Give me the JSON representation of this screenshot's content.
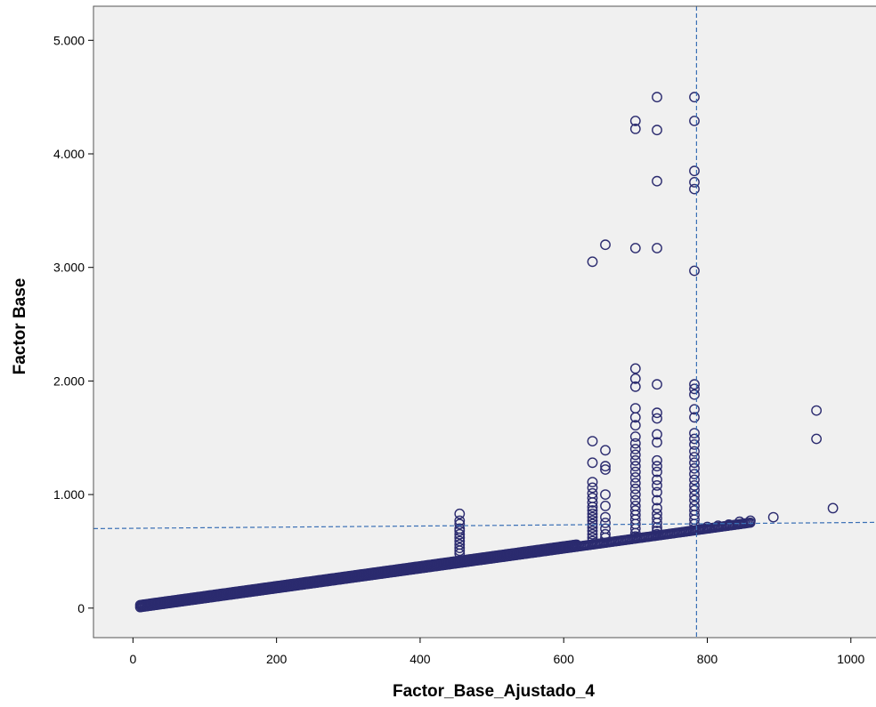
{
  "colors": {
    "plot_background": "#f0f0f0",
    "marker": "#2b2b6f",
    "reference_line": "#3a6fb5",
    "frame": "#555555"
  },
  "chart_data": {
    "type": "scatter",
    "title": "",
    "xlabel": "Factor_Base_Ajustado_4",
    "ylabel": "Factor Base",
    "xlim": [
      -55,
      1035
    ],
    "ylim": [
      -260,
      5300
    ],
    "x_ticks": [
      {
        "value": 0,
        "label": "0"
      },
      {
        "value": 200,
        "label": "200"
      },
      {
        "value": 400,
        "label": "400"
      },
      {
        "value": 600,
        "label": "600"
      },
      {
        "value": 800,
        "label": "800"
      },
      {
        "value": 1000,
        "label": "1000"
      }
    ],
    "y_ticks": [
      {
        "value": 0,
        "label": "0"
      },
      {
        "value": 1000,
        "label": "1.000"
      },
      {
        "value": 2000,
        "label": "2.000"
      },
      {
        "value": 3000,
        "label": "3.000"
      },
      {
        "value": 4000,
        "label": "4.000"
      },
      {
        "value": 5000,
        "label": "5.000"
      }
    ],
    "grid": false,
    "marker": "open-circle",
    "reference_lines": {
      "vertical_x": 785,
      "horizontal_from": {
        "x": -55,
        "y": 700
      },
      "horizontal_to": {
        "x": 1035,
        "y": 755
      }
    },
    "trend_band": {
      "x_start": 10,
      "x_end": 860,
      "y_at_start": 8,
      "y_per_x": 0.876,
      "note": "dense band of overlapping points along y ≈ 0.88·x"
    },
    "points": [
      [
        455,
        830
      ],
      [
        455,
        770
      ],
      [
        455,
        740
      ],
      [
        455,
        700
      ],
      [
        455,
        680
      ],
      [
        455,
        650
      ],
      [
        455,
        620
      ],
      [
        455,
        590
      ],
      [
        455,
        560
      ],
      [
        455,
        530
      ],
      [
        455,
        505
      ],
      [
        455,
        480
      ],
      [
        640,
        1470
      ],
      [
        640,
        1280
      ],
      [
        640,
        1110
      ],
      [
        640,
        1060
      ],
      [
        640,
        1010
      ],
      [
        640,
        970
      ],
      [
        640,
        930
      ],
      [
        640,
        890
      ],
      [
        640,
        860
      ],
      [
        640,
        830
      ],
      [
        640,
        800
      ],
      [
        640,
        770
      ],
      [
        640,
        740
      ],
      [
        640,
        710
      ],
      [
        640,
        680
      ],
      [
        640,
        650
      ],
      [
        640,
        620
      ],
      [
        640,
        590
      ],
      [
        658,
        1390
      ],
      [
        658,
        1250
      ],
      [
        658,
        1220
      ],
      [
        658,
        1000
      ],
      [
        658,
        900
      ],
      [
        658,
        800
      ],
      [
        658,
        750
      ],
      [
        658,
        700
      ],
      [
        658,
        650
      ],
      [
        658,
        620
      ],
      [
        640,
        3050
      ],
      [
        658,
        3200
      ],
      [
        700,
        4290
      ],
      [
        700,
        4220
      ],
      [
        700,
        3170
      ],
      [
        700,
        2110
      ],
      [
        700,
        2020
      ],
      [
        700,
        1950
      ],
      [
        700,
        1760
      ],
      [
        700,
        1680
      ],
      [
        700,
        1610
      ],
      [
        700,
        1510
      ],
      [
        700,
        1450
      ],
      [
        700,
        1400
      ],
      [
        700,
        1350
      ],
      [
        700,
        1300
      ],
      [
        700,
        1250
      ],
      [
        700,
        1200
      ],
      [
        700,
        1150
      ],
      [
        700,
        1100
      ],
      [
        700,
        1050
      ],
      [
        700,
        1000
      ],
      [
        700,
        950
      ],
      [
        700,
        900
      ],
      [
        700,
        860
      ],
      [
        700,
        820
      ],
      [
        700,
        780
      ],
      [
        700,
        740
      ],
      [
        700,
        700
      ],
      [
        700,
        660
      ],
      [
        700,
        630
      ],
      [
        730,
        4500
      ],
      [
        730,
        4210
      ],
      [
        730,
        3760
      ],
      [
        730,
        3170
      ],
      [
        730,
        1970
      ],
      [
        730,
        1720
      ],
      [
        730,
        1670
      ],
      [
        730,
        1530
      ],
      [
        730,
        1460
      ],
      [
        730,
        1300
      ],
      [
        730,
        1250
      ],
      [
        730,
        1200
      ],
      [
        730,
        1130
      ],
      [
        730,
        1080
      ],
      [
        730,
        1020
      ],
      [
        730,
        950
      ],
      [
        730,
        880
      ],
      [
        730,
        830
      ],
      [
        730,
        790
      ],
      [
        730,
        750
      ],
      [
        730,
        710
      ],
      [
        730,
        680
      ],
      [
        730,
        650
      ],
      [
        782,
        4500
      ],
      [
        782,
        4290
      ],
      [
        782,
        3850
      ],
      [
        782,
        3750
      ],
      [
        782,
        3690
      ],
      [
        782,
        2970
      ],
      [
        782,
        1970
      ],
      [
        782,
        1930
      ],
      [
        782,
        1880
      ],
      [
        782,
        1750
      ],
      [
        782,
        1680
      ],
      [
        782,
        1540
      ],
      [
        782,
        1490
      ],
      [
        782,
        1440
      ],
      [
        782,
        1380
      ],
      [
        782,
        1330
      ],
      [
        782,
        1280
      ],
      [
        782,
        1230
      ],
      [
        782,
        1180
      ],
      [
        782,
        1130
      ],
      [
        782,
        1080
      ],
      [
        782,
        1040
      ],
      [
        782,
        990
      ],
      [
        782,
        950
      ],
      [
        782,
        900
      ],
      [
        782,
        860
      ],
      [
        782,
        820
      ],
      [
        782,
        780
      ],
      [
        782,
        740
      ],
      [
        782,
        700
      ],
      [
        800,
        715
      ],
      [
        815,
        725
      ],
      [
        830,
        735
      ],
      [
        845,
        760
      ],
      [
        860,
        770
      ],
      [
        892,
        800
      ],
      [
        952,
        1740
      ],
      [
        952,
        1490
      ],
      [
        975,
        880
      ]
    ]
  }
}
